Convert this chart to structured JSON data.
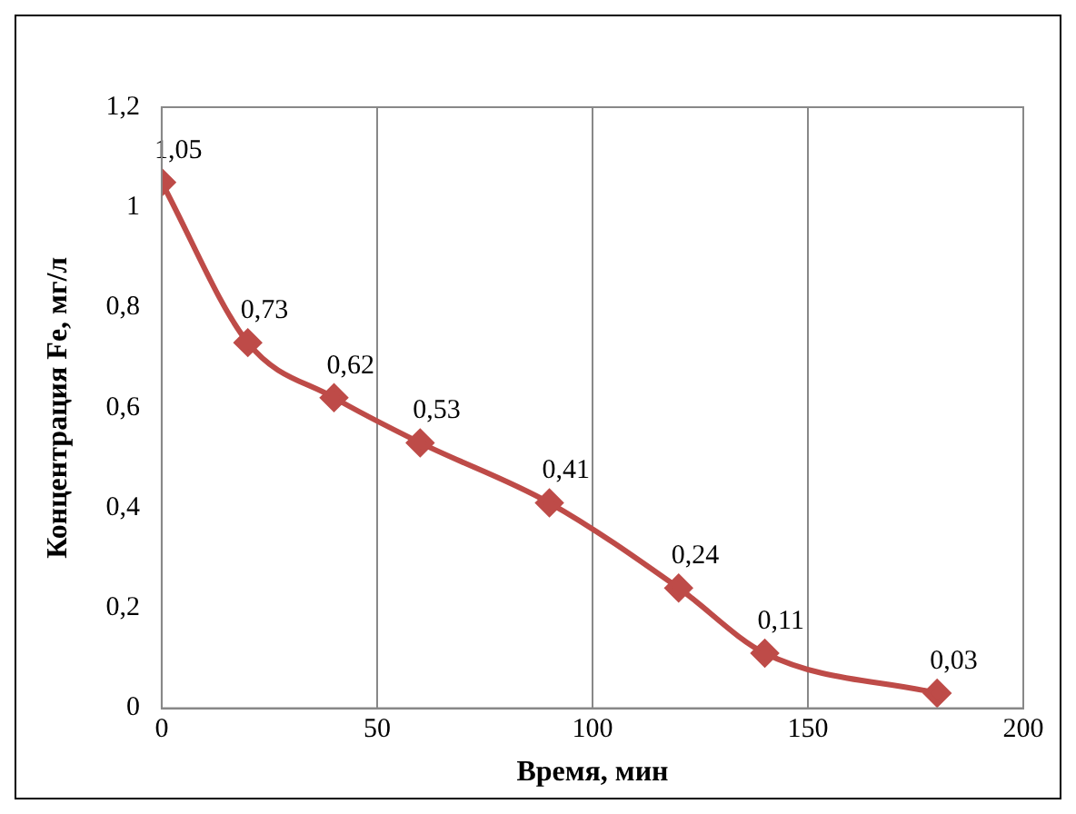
{
  "chart_data": {
    "type": "line",
    "xlabel": "Время, мин",
    "ylabel": "Концентрация Fe, мг/л",
    "x": [
      0,
      20,
      40,
      60,
      90,
      120,
      140,
      180
    ],
    "series": [
      {
        "color": "#be4b48",
        "values": [
          1.05,
          0.73,
          0.62,
          0.53,
          0.41,
          0.24,
          0.11,
          0.03
        ],
        "value_labels": [
          "1,05",
          "0,73",
          "0,62",
          "0,53",
          "0,41",
          "0,24",
          "0,11",
          "0,03"
        ]
      }
    ],
    "xlim": [
      0,
      200
    ],
    "xticks": [
      0,
      50,
      100,
      150,
      200
    ],
    "ylim": [
      0,
      1.2
    ],
    "yticks": [
      0,
      {
        "value": 0.2,
        "label": "0,2"
      },
      {
        "value": 0.4,
        "label": "0,4"
      },
      {
        "value": 0.6,
        "label": "0,6"
      },
      {
        "value": 0.8,
        "label": "0,8"
      },
      1,
      {
        "value": 1.2,
        "label": "1,2"
      }
    ],
    "grid": "x",
    "legend": false,
    "marker": "diamond",
    "line_style": "solid"
  }
}
